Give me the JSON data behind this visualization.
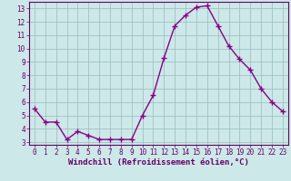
{
  "x": [
    0,
    1,
    2,
    3,
    4,
    5,
    6,
    7,
    8,
    9,
    10,
    11,
    12,
    13,
    14,
    15,
    16,
    17,
    18,
    19,
    20,
    21,
    22,
    23
  ],
  "y": [
    5.5,
    4.5,
    4.5,
    3.2,
    3.8,
    3.5,
    3.2,
    3.2,
    3.2,
    3.2,
    5.0,
    6.5,
    9.3,
    11.7,
    12.5,
    13.1,
    13.2,
    11.7,
    10.2,
    9.2,
    8.4,
    7.0,
    6.0,
    5.3
  ],
  "line_color": "#880088",
  "marker": "+",
  "marker_size": 4,
  "marker_lw": 1.0,
  "bg_color": "#cce8e8",
  "grid_color": "#99bbbb",
  "xlabel": "Windchill (Refroidissement éolien,°C)",
  "tick_fontsize": 5.5,
  "xlabel_fontsize": 6.5,
  "ylim": [
    2.8,
    13.5
  ],
  "xlim": [
    -0.5,
    23.5
  ],
  "yticks": [
    3,
    4,
    5,
    6,
    7,
    8,
    9,
    10,
    11,
    12,
    13
  ],
  "xticks": [
    0,
    1,
    2,
    3,
    4,
    5,
    6,
    7,
    8,
    9,
    10,
    11,
    12,
    13,
    14,
    15,
    16,
    17,
    18,
    19,
    20,
    21,
    22,
    23
  ],
  "spine_color": "#660066",
  "linewidth": 1.0
}
